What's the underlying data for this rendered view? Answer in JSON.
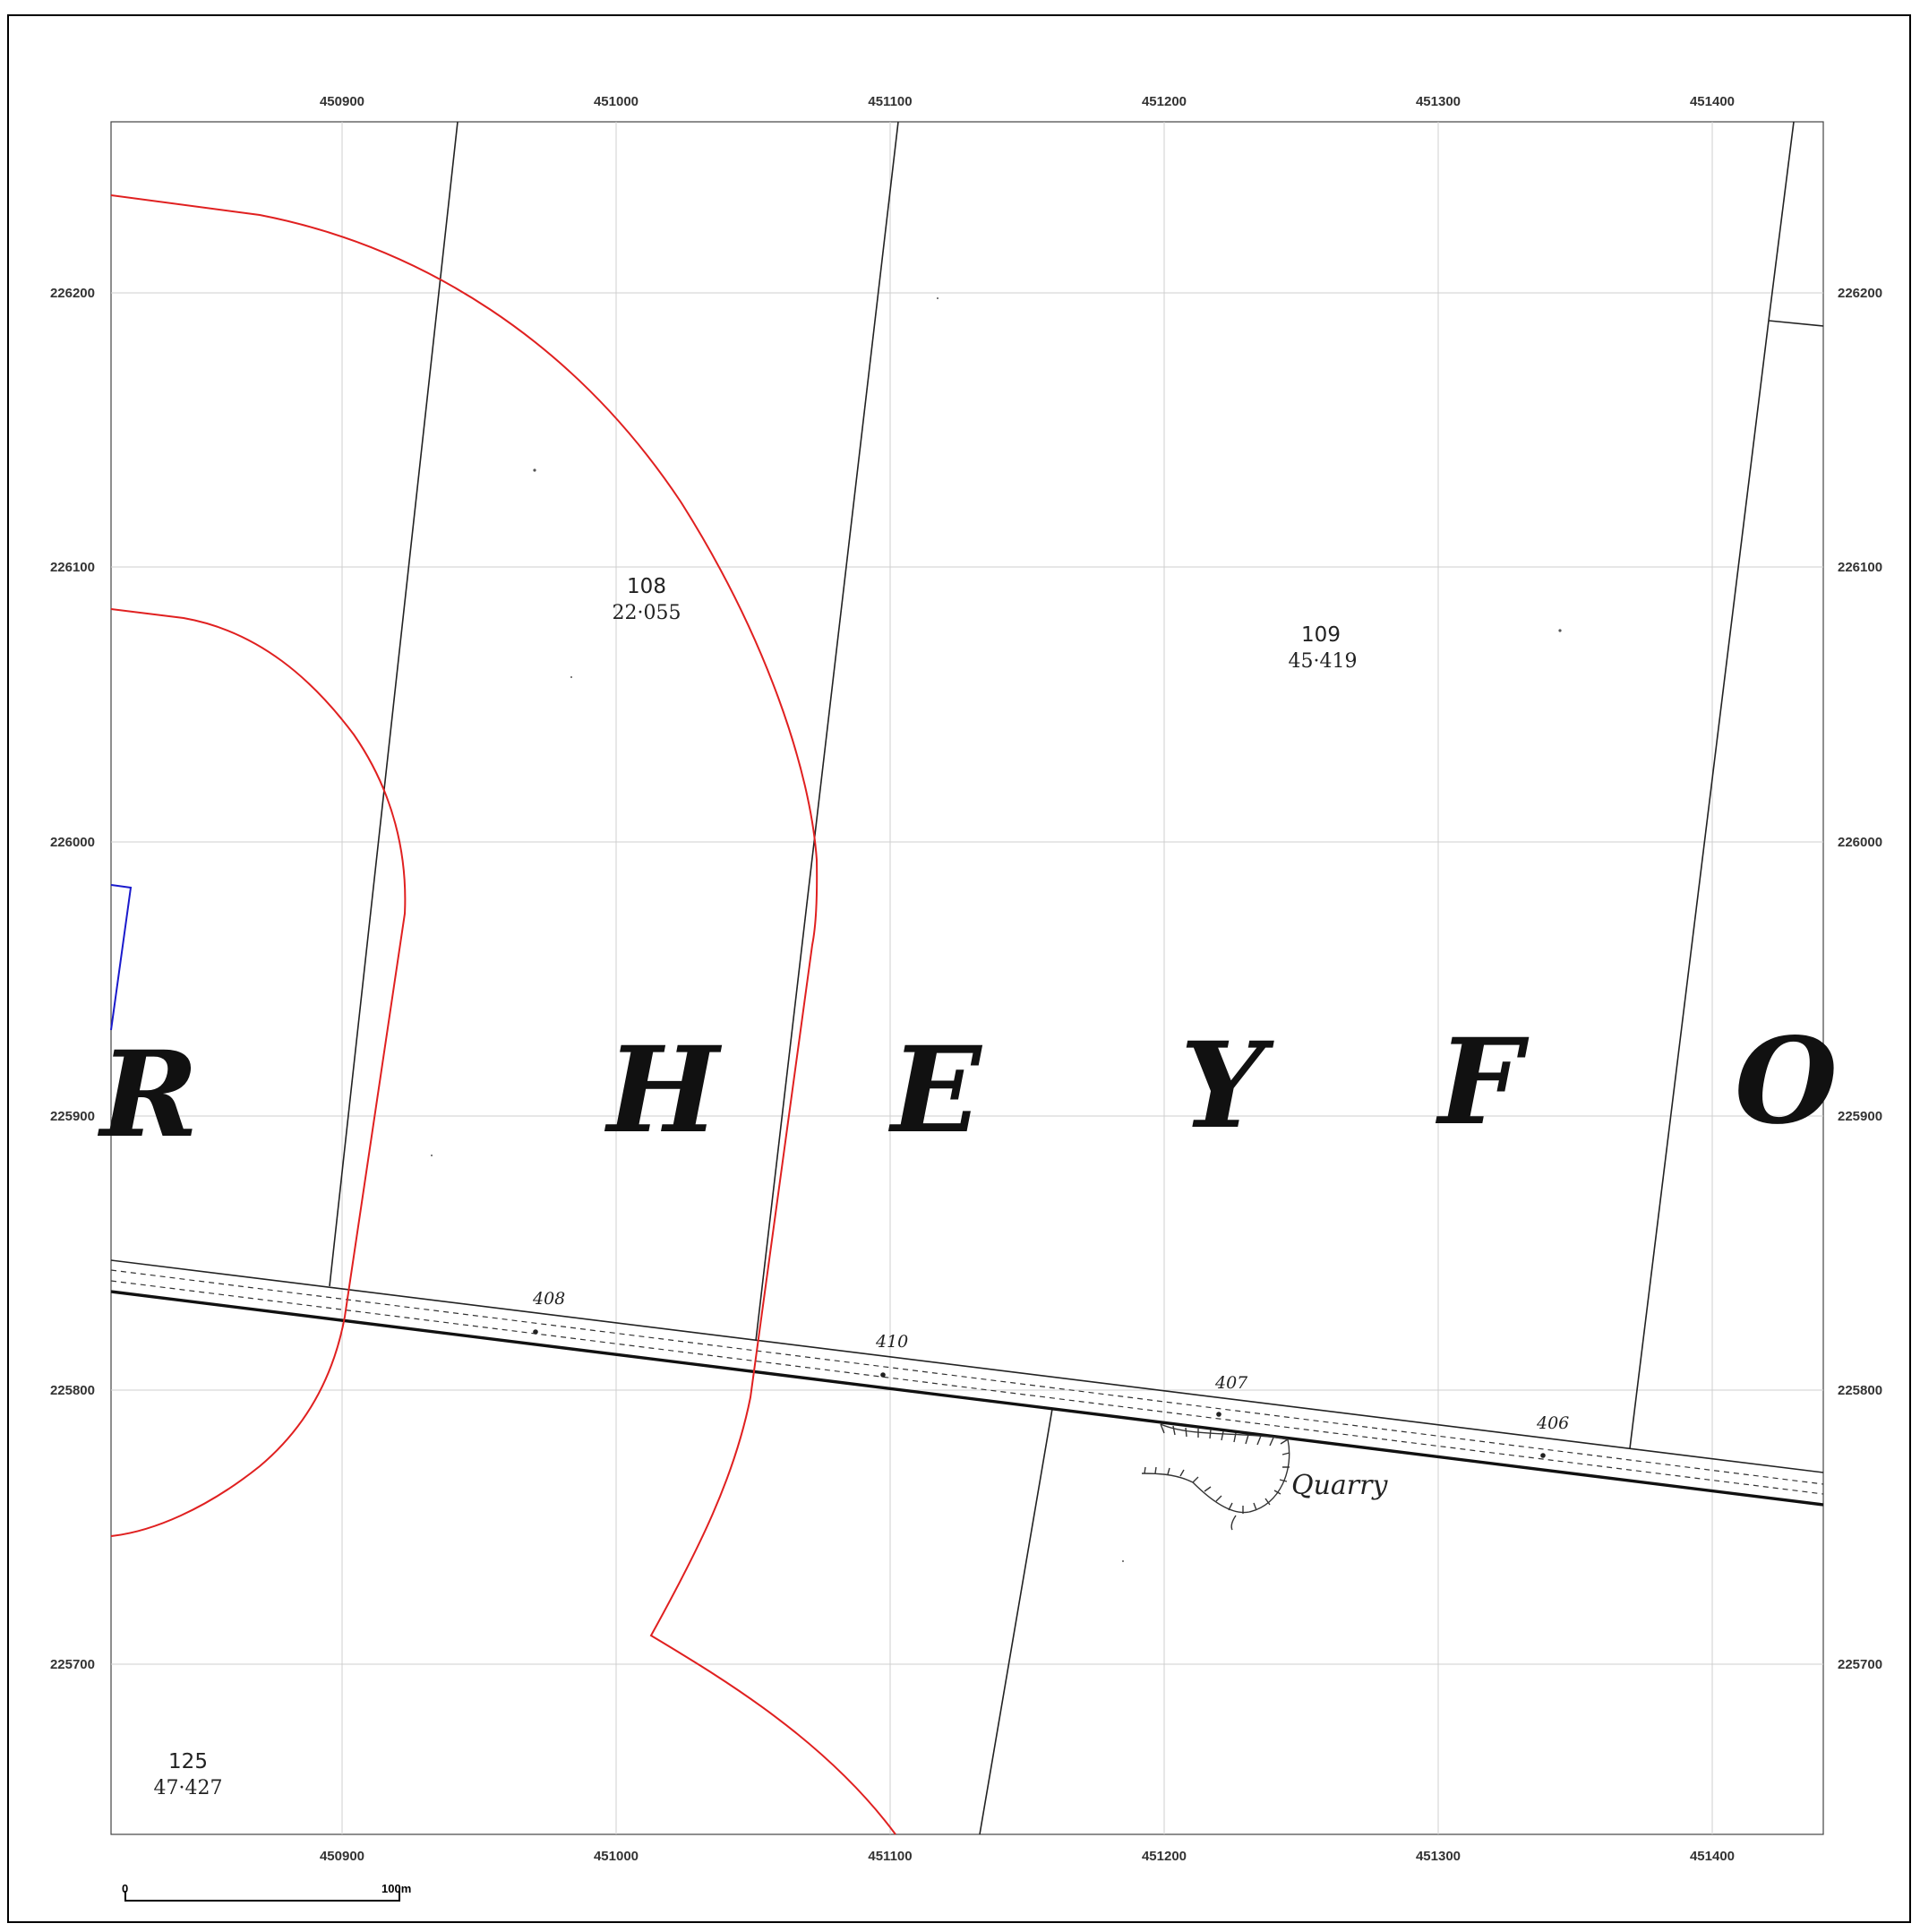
{
  "map": {
    "x_ticks": [
      "450900",
      "451000",
      "451100",
      "451200",
      "451300",
      "451400"
    ],
    "y_ticks": [
      "226200",
      "226100",
      "226000",
      "225900",
      "225800",
      "225700"
    ],
    "parcels": [
      {
        "number": "108",
        "area": "22·055"
      },
      {
        "number": "109",
        "area": "45·419"
      },
      {
        "number": "125",
        "area": "47·427"
      }
    ],
    "lettering": [
      "R",
      "H",
      "E",
      "Y",
      "F",
      "O"
    ],
    "spot_heights": [
      "408",
      "410",
      "407",
      "406"
    ],
    "feature_label": "Quarry",
    "scale_bar": {
      "start_label": "0",
      "end_label": "100m"
    },
    "colors": {
      "site_boundary": "#e02020",
      "blue_boundary": "#1a1acc",
      "grid": "#c8c8c8",
      "linework": "#222222"
    }
  }
}
